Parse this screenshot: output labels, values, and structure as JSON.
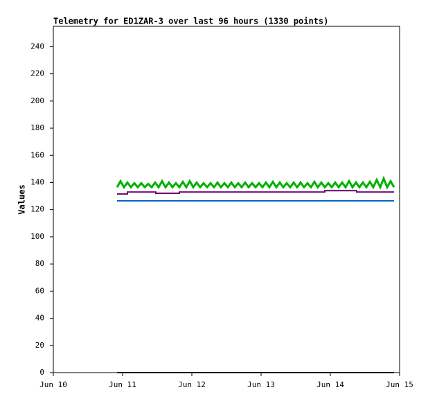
{
  "chart_data": {
    "type": "line",
    "title": "Telemetry for ED1ZAR-3 over last 96 hours (1330 points)",
    "y_label": "Values",
    "xlim": [
      10,
      15
    ],
    "xticks": [
      {
        "value": 10,
        "label": "Jun 10"
      },
      {
        "value": 11,
        "label": "Jun 11"
      },
      {
        "value": 12,
        "label": "Jun 12"
      },
      {
        "value": 13,
        "label": "Jun 13"
      },
      {
        "value": 14,
        "label": "Jun 14"
      },
      {
        "value": 15,
        "label": "Jun 15"
      }
    ],
    "ylim": [
      0,
      255
    ],
    "yticks": [
      0,
      20,
      40,
      60,
      80,
      100,
      120,
      140,
      160,
      180,
      200,
      220,
      240
    ],
    "series": [
      {
        "color": "#00b000",
        "x": [
          10.92,
          10.97,
          11.02,
          11.07,
          11.12,
          11.17,
          11.22,
          11.27,
          11.32,
          11.37,
          11.42,
          11.47,
          11.52,
          11.57,
          11.62,
          11.67,
          11.72,
          11.77,
          11.82,
          11.87,
          11.92,
          11.97,
          12.02,
          12.07,
          12.12,
          12.17,
          12.22,
          12.27,
          12.32,
          12.37,
          12.42,
          12.47,
          12.52,
          12.57,
          12.62,
          12.67,
          12.72,
          12.77,
          12.82,
          12.87,
          12.92,
          12.97,
          13.02,
          13.07,
          13.12,
          13.17,
          13.22,
          13.27,
          13.32,
          13.37,
          13.42,
          13.47,
          13.52,
          13.57,
          13.62,
          13.67,
          13.72,
          13.77,
          13.82,
          13.87,
          13.92,
          13.97,
          14.02,
          14.07,
          14.12,
          14.17,
          14.22,
          14.27,
          14.32,
          14.37,
          14.42,
          14.47,
          14.52,
          14.57,
          14.62,
          14.67,
          14.72,
          14.77,
          14.82,
          14.87,
          14.92
        ],
        "values": [
          136.5,
          141,
          136.5,
          140,
          136.5,
          139.5,
          136.5,
          139.5,
          136.5,
          139,
          136.5,
          140,
          136.5,
          141,
          136.5,
          140,
          136.5,
          139.5,
          136.5,
          140.5,
          136.5,
          141,
          136.5,
          140,
          136.5,
          139.5,
          136.5,
          139.5,
          136.5,
          140,
          136.5,
          139.5,
          136.5,
          140,
          136.5,
          139.5,
          136.5,
          140,
          136.5,
          139.5,
          136.5,
          139.5,
          136.5,
          140,
          136.5,
          140.5,
          136.5,
          140,
          136.5,
          139.5,
          136.5,
          140,
          136.5,
          140,
          136.5,
          139.5,
          136.5,
          140.5,
          136.5,
          140,
          136.5,
          139.5,
          136.5,
          140,
          136.5,
          140,
          136.5,
          141,
          136.5,
          140,
          136.5,
          140,
          136.5,
          140.5,
          136.5,
          142,
          136.5,
          143,
          136.5,
          141,
          136.5
        ]
      },
      {
        "color": "#660066",
        "x": [
          10.92,
          11.07,
          11.07,
          11.48,
          11.48,
          11.82,
          11.82,
          13.92,
          13.92,
          14.38,
          14.38,
          14.92
        ],
        "values": [
          131.5,
          131.5,
          133,
          133,
          132,
          132,
          133,
          133,
          134,
          134,
          133,
          133
        ]
      },
      {
        "color": "#0066cc",
        "x": [
          10.92,
          14.92
        ],
        "values": [
          126.5,
          126.5
        ]
      },
      {
        "color": "#000000",
        "x": [
          10.92,
          14.92
        ],
        "values": [
          0,
          0
        ]
      }
    ]
  }
}
